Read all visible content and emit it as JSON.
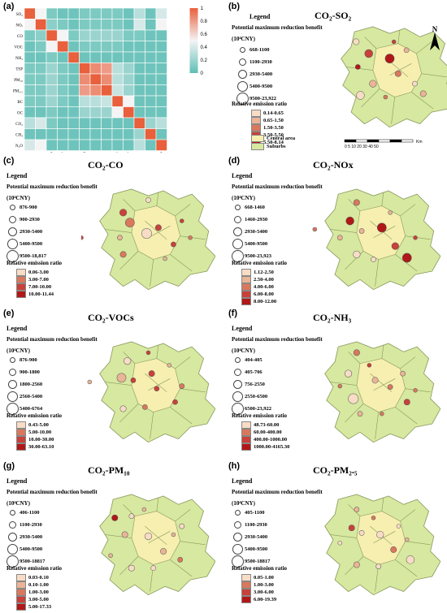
{
  "heatmap": {
    "tag": "(a)",
    "labels": [
      "SO₂",
      "NOₓ",
      "CO",
      "VOC",
      "NH₃",
      "TSP",
      "PM₁₀",
      "PM₂.₅",
      "BC",
      "OC",
      "CO₂",
      "CH₄",
      "N₂O"
    ],
    "colorbar_ticks": [
      "1",
      "0.8",
      "0.6",
      "0.4",
      "0.2",
      "0"
    ],
    "colors": {
      "low": "#5fbfb6",
      "high": "#e8603c",
      "mid": "#f4f4f4"
    },
    "matrix": [
      [
        1,
        0.5,
        0.1,
        0.05,
        0.05,
        0.1,
        0.1,
        0.1,
        0.1,
        0.05,
        0.3,
        0.05,
        0.4
      ],
      [
        0.5,
        1,
        0.15,
        0.1,
        0.05,
        0.1,
        0.1,
        0.1,
        0.1,
        0.05,
        0.4,
        0.05,
        0.5
      ],
      [
        0.1,
        0.15,
        1,
        0.5,
        0.1,
        0.2,
        0.2,
        0.2,
        0.2,
        0.1,
        0.1,
        0.05,
        0.05
      ],
      [
        0.05,
        0.1,
        0.5,
        1,
        0.05,
        0.1,
        0.1,
        0.1,
        0.1,
        0.05,
        0.05,
        0.05,
        0.05
      ],
      [
        0.05,
        0.05,
        0.1,
        0.05,
        1,
        0.05,
        0.05,
        0.05,
        0.05,
        0.05,
        0.05,
        0.05,
        0.05
      ],
      [
        0.1,
        0.1,
        0.2,
        0.1,
        0.05,
        1,
        0.85,
        0.8,
        0.3,
        0.2,
        0.05,
        0.05,
        0.05
      ],
      [
        0.1,
        0.1,
        0.2,
        0.1,
        0.05,
        0.85,
        1,
        0.85,
        0.3,
        0.2,
        0.05,
        0.05,
        0.05
      ],
      [
        0.1,
        0.1,
        0.2,
        0.1,
        0.05,
        0.8,
        0.85,
        1,
        0.35,
        0.2,
        0.05,
        0.05,
        0.05
      ],
      [
        0.1,
        0.1,
        0.2,
        0.1,
        0.05,
        0.3,
        0.3,
        0.35,
        1,
        0.5,
        0.05,
        0.05,
        0.05
      ],
      [
        0.05,
        0.05,
        0.1,
        0.05,
        0.05,
        0.2,
        0.2,
        0.2,
        0.5,
        1,
        0.05,
        0.05,
        0.05
      ],
      [
        0.3,
        0.4,
        0.1,
        0.05,
        0.05,
        0.05,
        0.05,
        0.05,
        0.05,
        0.05,
        1,
        0.2,
        0.3
      ],
      [
        0.05,
        0.05,
        0.05,
        0.05,
        0.05,
        0.05,
        0.05,
        0.05,
        0.05,
        0.05,
        0.2,
        1,
        0.05
      ],
      [
        0.4,
        0.5,
        0.05,
        0.05,
        0.05,
        0.05,
        0.05,
        0.05,
        0.05,
        0.05,
        0.3,
        0.05,
        1
      ]
    ]
  },
  "common": {
    "legend": "Legend",
    "benefit": "Potential maximum reduction benefit",
    "unit": "(10⁴CNY)",
    "ratio": "Relative emission ratio",
    "north": "N",
    "central": "Central area",
    "suburbs": "Suburbs",
    "scale": "0 5 10  20  30  40  50",
    "scale_unit": "Km"
  },
  "ratio_colors": [
    "#f8dcc6",
    "#eab497",
    "#d9785c",
    "#c8413a",
    "#b01818"
  ],
  "panels": [
    {
      "tag": "(b)",
      "title": "CO₂-SO₂",
      "bubbles": [
        "668-1100",
        "1100-2930",
        "2930-5400",
        "5400-9500",
        "9500-23,922"
      ],
      "ratios": [
        "0.14-0.65",
        "0.65-1.50",
        "1.50-3.50",
        "3.50-5.50",
        "5.50-8.14"
      ]
    },
    {
      "tag": "(c)",
      "title": "CO₂-CO",
      "bubbles": [
        "876-900",
        "900-2930",
        "2930-5400",
        "5400-9500",
        "9500-18,817"
      ],
      "ratios": [
        "0.06-3.00",
        "3.00-7.00",
        "7.00-10.00",
        "10.00-11.44"
      ]
    },
    {
      "tag": "(d)",
      "title": "CO₂-NOx",
      "bubbles": [
        "668-1460",
        "1460-2930",
        "2930-5400",
        "5400-9500",
        "9500-23,923"
      ],
      "ratios": [
        "1.12-2.50",
        "2.50-4.00",
        "4.00-6.00",
        "6.00-8.00",
        "8.00-12.00"
      ]
    },
    {
      "tag": "(e)",
      "title": "CO₂-VOCs",
      "bubbles": [
        "876-900",
        "900-1800",
        "1800-2560",
        "2560-5400",
        "5400-6764"
      ],
      "ratios": [
        "0.43-5.00",
        "5.00-10.00",
        "10.00-30.00",
        "30.00-63.10"
      ]
    },
    {
      "tag": "(f)",
      "title": "CO₂-NH₃",
      "bubbles": [
        "404-405",
        "405-706",
        "756-2550",
        "2550-6500",
        "6500-23,922"
      ],
      "ratios": [
        "48.73-60.00",
        "60.00-400.00",
        "400.00-1000.00",
        "1000.00-4165.30"
      ]
    },
    {
      "tag": "(g)",
      "title": "CO₂-PM₁₀",
      "bubbles": [
        "406-1100",
        "1100-2930",
        "2930-5400",
        "5400-9500",
        "9500-18817"
      ],
      "ratios": [
        "0.03-0.10",
        "0.10-1.00",
        "1.00-3.00",
        "3.00-5.00",
        "5.00-17.33"
      ]
    },
    {
      "tag": "(h)",
      "title": "CO₂-PM₂.₅",
      "bubbles": [
        "405-1100",
        "1100-2930",
        "2930-5400",
        "5400-9500",
        "9500-18817"
      ],
      "ratios": [
        "0.05-1.00",
        "1.00-3.00",
        "3.00-6.00",
        "6.00-19.39"
      ]
    }
  ]
}
